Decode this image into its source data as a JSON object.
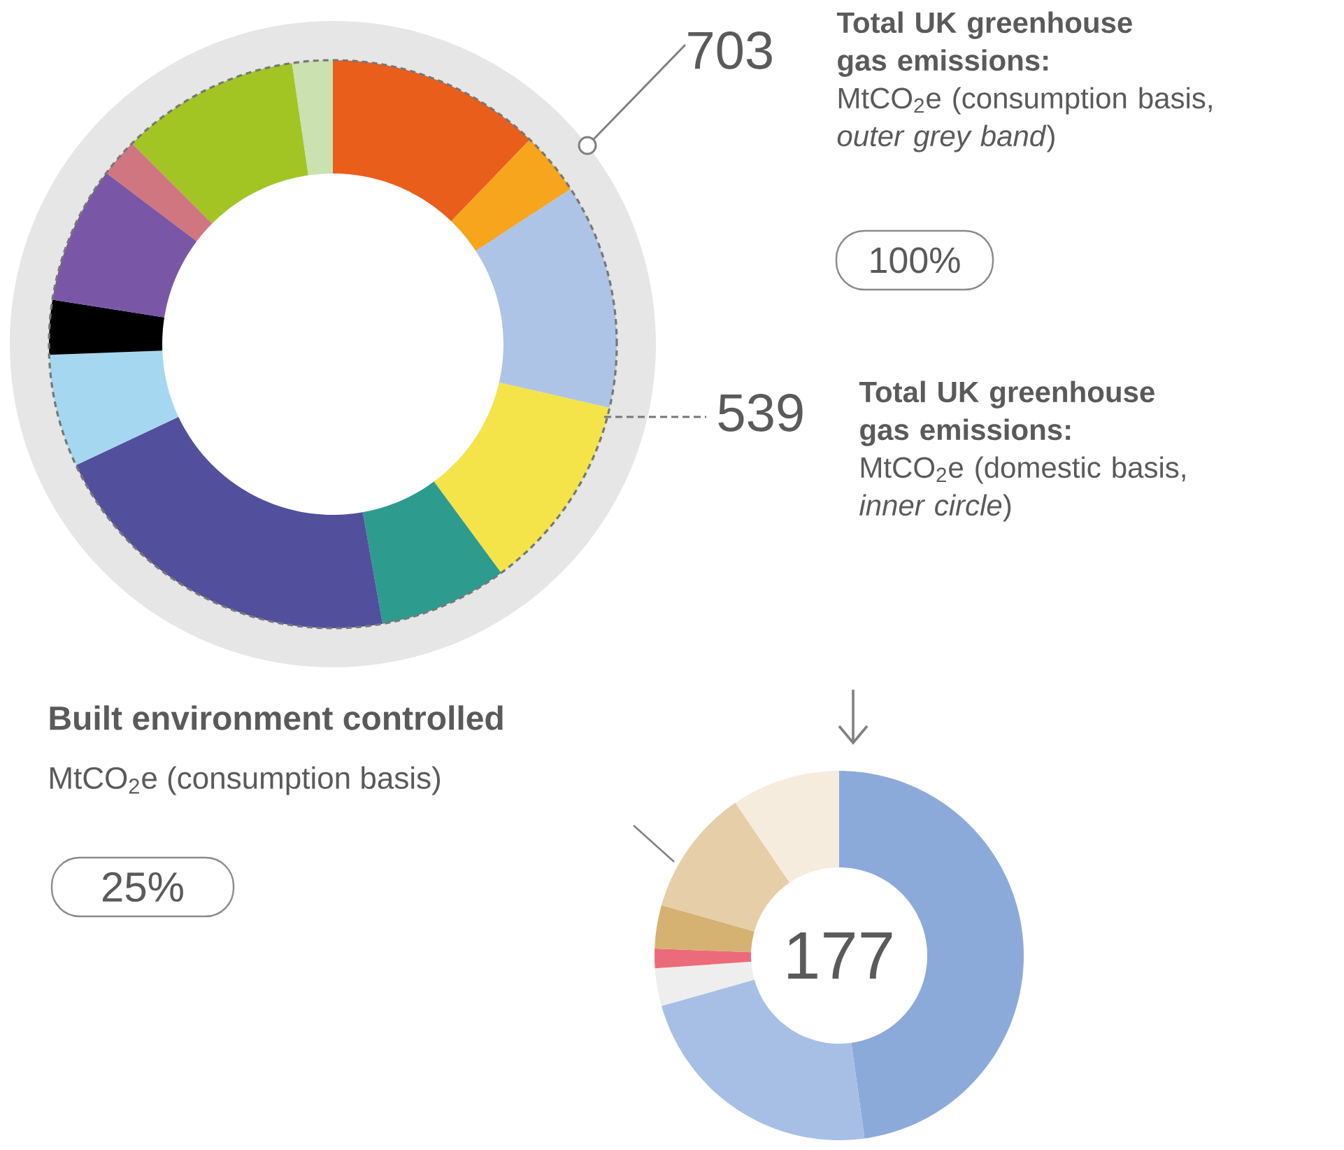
{
  "chart_data": [
    {
      "type": "donut",
      "categories": [
        null,
        null,
        null,
        null,
        null,
        null,
        null,
        null,
        null,
        null,
        null,
        null
      ],
      "values": [
        12.2,
        3.6,
        12.8,
        11.3,
        7.3,
        20.8,
        6.4,
        3.1,
        7.8,
        2.2,
        10.2,
        2.3
      ],
      "colors": [
        "#ea5e1c",
        "#f7a51c",
        "#aec4e6",
        "#f4e44a",
        "#2e9b8f",
        "#524f9c",
        "#a5d8f0",
        "#000000",
        "#7a57a6",
        "#cf7680",
        "#a2c524",
        "#cbe1b0"
      ],
      "annotations": [
        "703",
        "Total UK greenhouse gas emissions:",
        "MtCO$_{2}$e (consumption basis, *outer grey band*)",
        "100%",
        "539",
        "Total UK greenhouse gas emissions:",
        "MtCO$_{2}$e (domestic basis, *inner circle*)"
      ]
    },
    {
      "type": "donut",
      "title": "Built environment controlled",
      "subtitle": "MtCO$_{2}$e (consumption basis)",
      "categories": [
        null,
        null,
        null,
        null,
        null,
        null,
        null
      ],
      "values": [
        47.8,
        22.8,
        3.3,
        1.7,
        3.8,
        11.1,
        9.5
      ],
      "colors": [
        "#8caad9",
        "#a7bfe4",
        "#eeeeee",
        "#ec6b7a",
        "#d5b172",
        "#e5cea8",
        "#f5ecde"
      ],
      "annotations": [
        "25%",
        "177"
      ]
    }
  ]
}
